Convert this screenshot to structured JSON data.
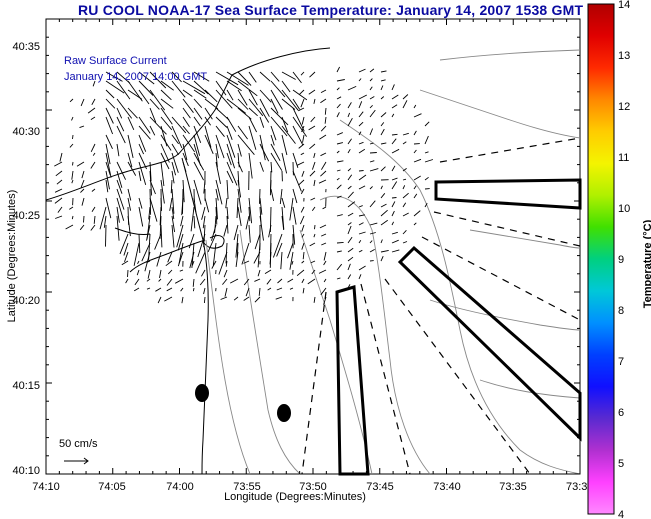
{
  "title": "RU COOL  NOAA-17  Sea Surface Temperature:  January 14, 2007 1538 GMT",
  "inset": {
    "line1": "Raw Surface Current",
    "line2": "January 14, 2007  14:00 GMT"
  },
  "scale_label": "50 cm/s",
  "axes": {
    "x_label": "Longitude (Degrees:Minutes)",
    "y_label": "Latitude (Degrees:Minutes)",
    "x_ticks": [
      "74:10",
      "74:05",
      "74:00",
      "73:55",
      "73:50",
      "73:45",
      "73:40",
      "73:35",
      "73:3"
    ],
    "y_ticks": [
      "40:35",
      "40:30",
      "40:25",
      "40:20",
      "40:15",
      "40:10"
    ]
  },
  "colorbar": {
    "title": "Temperature (°C)",
    "ticks": [
      "14",
      "13",
      "12",
      "11",
      "10",
      "9",
      "8",
      "7",
      "6",
      "5",
      "4"
    ],
    "colors": [
      "#b00000",
      "#e00000",
      "#ff2a00",
      "#ff8800",
      "#ffcc00",
      "#f4f400",
      "#b0f000",
      "#40e000",
      "#00d080",
      "#00c8d8",
      "#0090ff",
      "#0040ff",
      "#1010ff",
      "#5a2ad0",
      "#b030d0",
      "#ff40ff",
      "#ff88ff"
    ],
    "min": 4,
    "max": 14
  }
}
